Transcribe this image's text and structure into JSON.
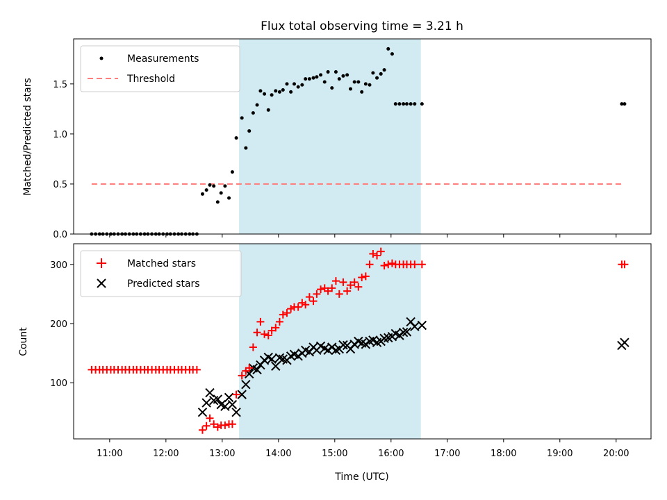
{
  "chart_data": [
    {
      "type": "scatter",
      "title": "Flux total observing time = 3.21 h",
      "xlabel": "",
      "ylabel": "Matched/Predicted stars",
      "ylim": [
        0,
        1.95
      ],
      "yticks": [
        0.0,
        0.5,
        1.0,
        1.5
      ],
      "ytick_labels": [
        "0.0",
        "0.5",
        "1.0",
        "1.5"
      ],
      "xlim": [
        10.36,
        20.62
      ],
      "shaded_interval": [
        13.3,
        16.53
      ],
      "shade_color": "#add8e6",
      "legend_placement": "upper-left",
      "series": [
        {
          "name": "Measurements",
          "marker": "dot",
          "color": "#000000",
          "x": [
            10.68,
            10.75,
            10.82,
            10.88,
            10.95,
            11.02,
            11.08,
            11.15,
            11.22,
            11.28,
            11.35,
            11.42,
            11.48,
            11.55,
            11.62,
            11.68,
            11.75,
            11.82,
            11.88,
            11.95,
            12.02,
            12.08,
            12.15,
            12.22,
            12.28,
            12.35,
            12.42,
            12.48,
            12.55,
            12.65,
            12.72,
            12.78,
            12.85,
            12.92,
            12.98,
            13.05,
            13.12,
            13.18,
            13.25,
            13.35,
            13.42,
            13.48,
            13.55,
            13.62,
            13.68,
            13.75,
            13.82,
            13.88,
            13.95,
            14.02,
            14.08,
            14.15,
            14.22,
            14.28,
            14.35,
            14.42,
            14.48,
            14.55,
            14.62,
            14.68,
            14.75,
            14.82,
            14.88,
            14.95,
            15.02,
            15.08,
            15.15,
            15.22,
            15.28,
            15.35,
            15.42,
            15.48,
            15.55,
            15.62,
            15.68,
            15.75,
            15.82,
            15.88,
            15.95,
            16.02,
            16.08,
            16.15,
            16.22,
            16.28,
            16.35,
            16.42,
            16.55,
            20.1,
            20.15
          ],
          "y": [
            0,
            0,
            0,
            0,
            0,
            0,
            0,
            0,
            0,
            0,
            0,
            0,
            0,
            0,
            0,
            0,
            0,
            0,
            0,
            0,
            0,
            0,
            0,
            0,
            0,
            0,
            0,
            0,
            0,
            0.4,
            0.44,
            0.49,
            0.48,
            0.32,
            0.41,
            0.48,
            0.36,
            0.62,
            0.96,
            1.16,
            0.86,
            1.03,
            1.21,
            1.29,
            1.43,
            1.4,
            1.24,
            1.39,
            1.43,
            1.42,
            1.44,
            1.5,
            1.42,
            1.5,
            1.47,
            1.49,
            1.55,
            1.55,
            1.56,
            1.57,
            1.59,
            1.52,
            1.62,
            1.46,
            1.62,
            1.55,
            1.58,
            1.59,
            1.45,
            1.52,
            1.52,
            1.42,
            1.5,
            1.49,
            1.61,
            1.56,
            1.6,
            1.64,
            1.85,
            1.8,
            1.3,
            1.3,
            1.3,
            1.3,
            1.3,
            1.3,
            1.3,
            1.3,
            1.3
          ]
        },
        {
          "name": "Threshold",
          "marker": "dashed-line",
          "color": "#ff7f7f",
          "x": [
            10.68,
            20.15
          ],
          "y": [
            0.5,
            0.5
          ]
        }
      ]
    },
    {
      "type": "scatter",
      "title": "",
      "xlabel": "Time (UTC)",
      "ylabel": "Count",
      "ylim": [
        5,
        335
      ],
      "yticks": [
        100,
        200,
        300
      ],
      "ytick_labels": [
        "100",
        "200",
        "300"
      ],
      "xlim": [
        10.36,
        20.62
      ],
      "xticks": [
        11,
        12,
        13,
        14,
        15,
        16,
        17,
        18,
        19,
        20
      ],
      "xtick_labels": [
        "11:00",
        "12:00",
        "13:00",
        "14:00",
        "15:00",
        "16:00",
        "17:00",
        "18:00",
        "19:00",
        "20:00"
      ],
      "shaded_interval": [
        13.3,
        16.53
      ],
      "shade_color": "#add8e6",
      "legend_placement": "upper-left",
      "series": [
        {
          "name": "Matched stars",
          "marker": "plus",
          "color": "#ff0000",
          "x": [
            10.68,
            10.75,
            10.82,
            10.88,
            10.95,
            11.02,
            11.08,
            11.15,
            11.22,
            11.28,
            11.35,
            11.42,
            11.48,
            11.55,
            11.62,
            11.68,
            11.75,
            11.82,
            11.88,
            11.95,
            12.02,
            12.08,
            12.15,
            12.22,
            12.28,
            12.35,
            12.42,
            12.48,
            12.55,
            12.65,
            12.72,
            12.78,
            12.85,
            12.92,
            12.98,
            13.05,
            13.12,
            13.18,
            13.25,
            13.35,
            13.42,
            13.48,
            13.55,
            13.62,
            13.68,
            13.75,
            13.82,
            13.88,
            13.95,
            14.02,
            14.08,
            14.15,
            14.22,
            14.28,
            14.35,
            14.42,
            14.48,
            14.55,
            14.62,
            14.68,
            14.75,
            14.82,
            14.88,
            14.95,
            15.02,
            15.08,
            15.15,
            15.22,
            15.28,
            15.35,
            15.42,
            15.48,
            15.55,
            15.62,
            15.68,
            15.75,
            15.82,
            15.88,
            15.95,
            16.02,
            16.08,
            16.15,
            16.22,
            16.28,
            16.35,
            16.42,
            16.55,
            20.1,
            20.15
          ],
          "y": [
            122,
            122,
            122,
            122,
            122,
            122,
            122,
            122,
            122,
            122,
            122,
            122,
            122,
            122,
            122,
            122,
            122,
            122,
            122,
            122,
            122,
            122,
            122,
            122,
            122,
            122,
            122,
            122,
            122,
            20,
            27,
            40,
            30,
            25,
            28,
            28,
            30,
            30,
            80,
            112,
            120,
            125,
            160,
            185,
            203,
            182,
            180,
            188,
            193,
            203,
            215,
            218,
            225,
            228,
            228,
            235,
            232,
            245,
            238,
            250,
            258,
            260,
            255,
            260,
            272,
            250,
            270,
            255,
            265,
            270,
            262,
            278,
            280,
            300,
            318,
            315,
            322,
            298,
            300,
            302,
            300,
            300,
            300,
            300,
            300,
            300,
            300,
            300,
            300
          ]
        },
        {
          "name": "Predicted stars",
          "marker": "x",
          "color": "#000000",
          "x": [
            12.65,
            12.72,
            12.78,
            12.85,
            12.92,
            12.98,
            13.05,
            13.12,
            13.18,
            13.25,
            13.35,
            13.42,
            13.48,
            13.55,
            13.62,
            13.68,
            13.75,
            13.82,
            13.88,
            13.95,
            14.02,
            14.08,
            14.15,
            14.22,
            14.28,
            14.35,
            14.42,
            14.48,
            14.55,
            14.62,
            14.68,
            14.75,
            14.82,
            14.88,
            14.95,
            15.02,
            15.08,
            15.15,
            15.22,
            15.28,
            15.35,
            15.42,
            15.48,
            15.55,
            15.62,
            15.68,
            15.75,
            15.82,
            15.88,
            15.95,
            16.02,
            16.08,
            16.15,
            16.22,
            16.28,
            16.35,
            16.42,
            16.55,
            20.1,
            20.15
          ],
          "y": [
            50,
            66,
            83,
            70,
            72,
            63,
            60,
            75,
            63,
            50,
            80,
            97,
            115,
            125,
            122,
            130,
            138,
            143,
            140,
            128,
            142,
            140,
            138,
            145,
            148,
            145,
            150,
            155,
            152,
            160,
            155,
            162,
            158,
            155,
            160,
            155,
            157,
            164,
            163,
            157,
            165,
            170,
            167,
            165,
            170,
            172,
            168,
            170,
            175,
            176,
            178,
            183,
            180,
            185,
            186,
            203,
            195,
            197,
            163,
            168
          ]
        }
      ]
    }
  ]
}
